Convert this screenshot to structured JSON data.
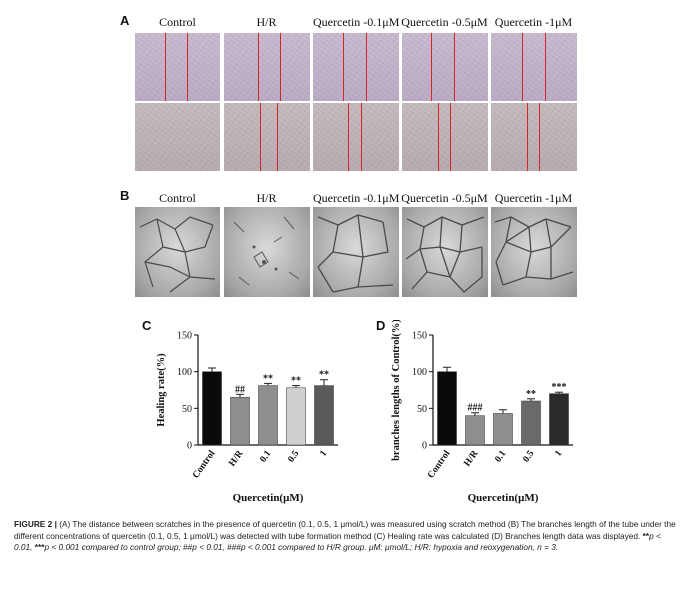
{
  "panels": {
    "A": "A",
    "B": "B",
    "C": "C",
    "D": "D"
  },
  "columns": [
    "Control",
    "H/R",
    "Quercetin -0.1μM",
    "Quercetin -0.5μM",
    "Quercetin -1μM"
  ],
  "caption": {
    "figure_label": "FIGURE 2 |",
    "text_1": " (A) The distance between scratches in the presence of quercetin (0.1, 0.5, 1 μmol/L) was measured using scratch method (B) The branches length of the tube under the different concentrations of quercetin (0.1, 0.5, 1 μmol/L) was detected with tube formation method (C) Healing rate was calculated (D) Branches length data was displayed. ",
    "sym_1": "**",
    "text_2": "p < 0.01, ",
    "sym_2": "***",
    "text_3": "p < 0.001 compared to control group; ",
    "sym_3": "##",
    "text_4": "p < 0.01, ",
    "sym_4": "###",
    "text_5": "p < 0.001 compared to H/R group. μM: μmol/L; H/R: hypoxia and reoxygenation, n = 3."
  },
  "chart_data": [
    {
      "type": "bar",
      "panel": "C",
      "categories": [
        "Control",
        "H/R",
        "0.1",
        "0.5",
        "1"
      ],
      "values": [
        100,
        65,
        81,
        78,
        81
      ],
      "errors": [
        5,
        4,
        3,
        3,
        8
      ],
      "annotations": [
        "",
        "##",
        "**",
        "**",
        "**"
      ],
      "colors": [
        "#0a0a0a",
        "#8e8e8e",
        "#8e8e8e",
        "#cfcfcf",
        "#5a5a5a"
      ],
      "ylabel": "Healing rate(%)",
      "xlabel": "Quercetin(μM)",
      "ylim": [
        0,
        150
      ],
      "yticks": [
        0,
        50,
        100,
        150
      ]
    },
    {
      "type": "bar",
      "panel": "D",
      "categories": [
        "Control",
        "H/R",
        "0.1",
        "0.5",
        "1"
      ],
      "values": [
        100,
        40,
        43,
        60,
        70
      ],
      "errors": [
        6,
        4,
        5,
        3,
        2
      ],
      "annotations": [
        "",
        "###",
        "",
        "**",
        "***"
      ],
      "colors": [
        "#0a0a0a",
        "#8e8e8e",
        "#8e8e8e",
        "#6a6a6a",
        "#2a2a2a"
      ],
      "ylabel": "branches lengths of Control(%)",
      "xlabel": "Quercetin(μM)",
      "ylim": [
        0,
        150
      ],
      "yticks": [
        0,
        50,
        100,
        150
      ]
    }
  ]
}
